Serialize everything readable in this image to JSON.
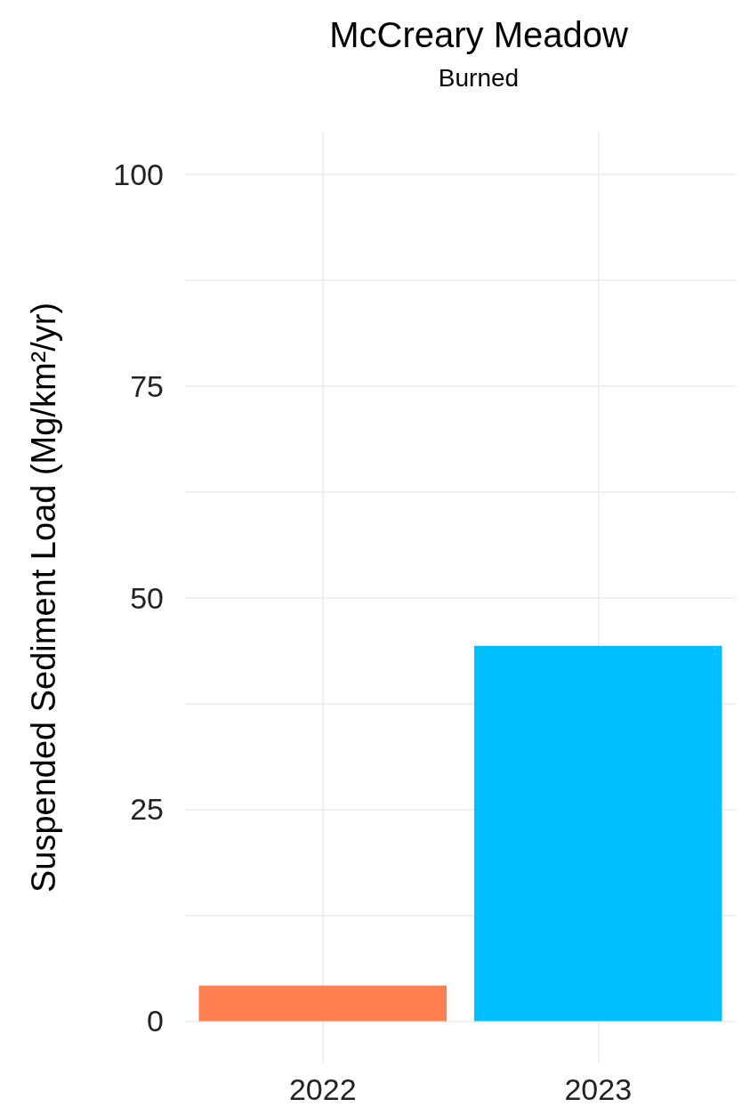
{
  "chart_data": {
    "type": "bar",
    "title": "McCreary Meadow",
    "subtitle": "Burned",
    "ylabel": "Suspended Sediment Load (Mg/km²/yr)",
    "categories": [
      "2022",
      "2023"
    ],
    "values": [
      4.2,
      44.3
    ],
    "colors": [
      "#ff7f50",
      "#00bfff"
    ],
    "ylim": [
      -5,
      105
    ],
    "yticks": [
      0,
      {
        "value": 12.5,
        "label": null
      },
      25,
      {
        "value": 37.5,
        "label": null
      },
      50,
      {
        "value": 62.5,
        "label": null
      },
      75,
      {
        "value": 87.5,
        "label": null
      },
      100
    ],
    "grid": true
  }
}
